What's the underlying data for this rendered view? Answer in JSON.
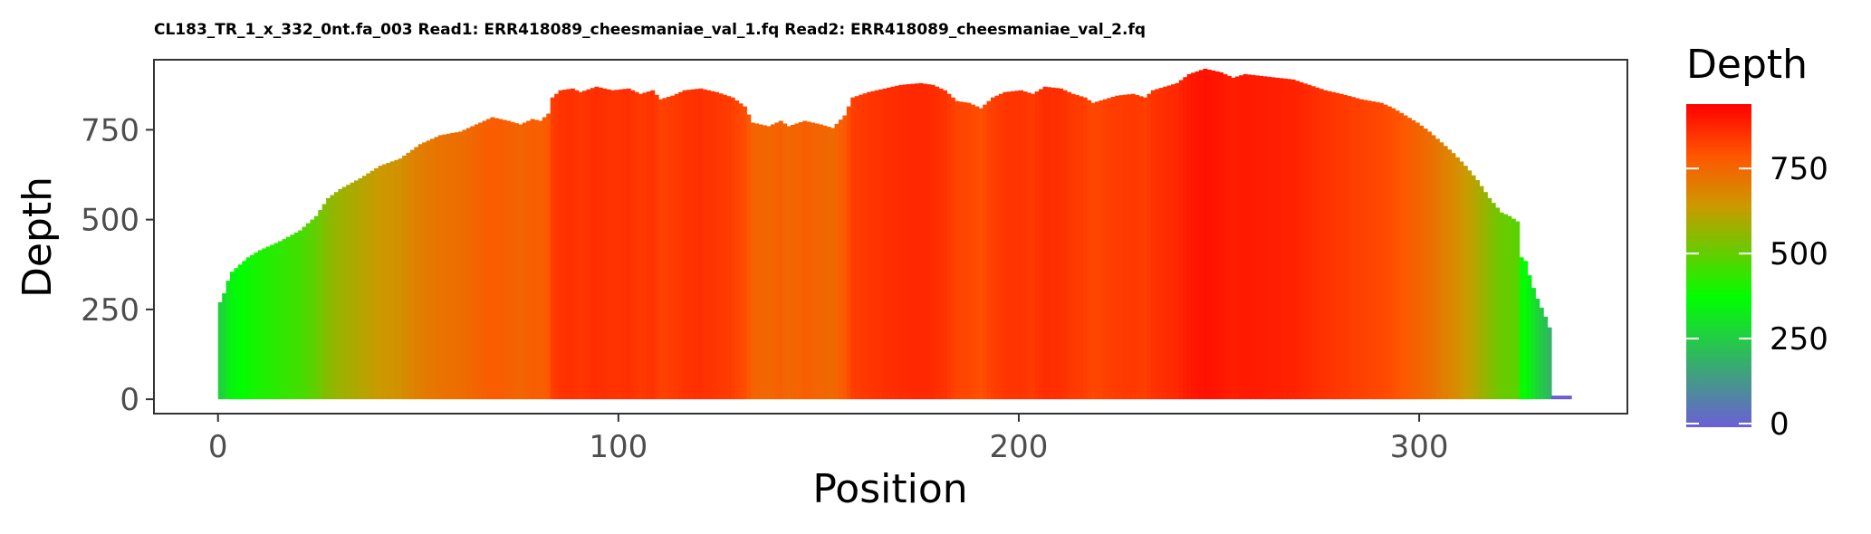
{
  "chart_data": {
    "type": "bar",
    "title": "CL183_TR_1_x_332_0nt.fa_003 Read1: ERR418089_cheesmaniae_val_1.fq Read2: ERR418089_cheesmaniae_val_2.fq",
    "xlabel": "Position",
    "ylabel": "Depth",
    "xlim": [
      -16,
      352
    ],
    "ylim": [
      -40,
      945
    ],
    "x_ticks": [
      0,
      100,
      200,
      300
    ],
    "y_ticks": [
      0,
      250,
      500,
      750
    ],
    "grid": false,
    "legend": {
      "title": "Depth",
      "position": "right",
      "ticks": [
        0,
        250,
        500,
        750
      ],
      "range": [
        0,
        950
      ],
      "gradient_colors": [
        {
          "value": 0,
          "color": "#6b5fd6"
        },
        {
          "value": 380,
          "color": "#00ff00"
        },
        {
          "value": 650,
          "color": "#cc9900"
        },
        {
          "value": 800,
          "color": "#ff5500"
        },
        {
          "value": 950,
          "color": "#ff0000"
        }
      ]
    },
    "series_note": "",
    "key_points": [
      [
        0,
        270
      ],
      [
        1,
        295
      ],
      [
        2,
        330
      ],
      [
        3,
        355
      ],
      [
        5,
        375
      ],
      [
        7,
        395
      ],
      [
        10,
        415
      ],
      [
        15,
        440
      ],
      [
        20,
        470
      ],
      [
        24,
        510
      ],
      [
        27,
        560
      ],
      [
        30,
        585
      ],
      [
        35,
        615
      ],
      [
        40,
        650
      ],
      [
        45,
        670
      ],
      [
        50,
        710
      ],
      [
        55,
        735
      ],
      [
        60,
        745
      ],
      [
        65,
        770
      ],
      [
        68,
        785
      ],
      [
        72,
        775
      ],
      [
        75,
        765
      ],
      [
        78,
        780
      ],
      [
        80,
        775
      ],
      [
        82,
        795
      ],
      [
        83,
        840
      ],
      [
        85,
        860
      ],
      [
        88,
        865
      ],
      [
        90,
        855
      ],
      [
        94,
        870
      ],
      [
        98,
        860
      ],
      [
        102,
        865
      ],
      [
        105,
        850
      ],
      [
        108,
        860
      ],
      [
        110,
        835
      ],
      [
        113,
        845
      ],
      [
        116,
        860
      ],
      [
        120,
        865
      ],
      [
        124,
        855
      ],
      [
        128,
        840
      ],
      [
        131,
        815
      ],
      [
        133,
        770
      ],
      [
        137,
        760
      ],
      [
        140,
        775
      ],
      [
        142,
        760
      ],
      [
        146,
        775
      ],
      [
        150,
        765
      ],
      [
        153,
        755
      ],
      [
        156,
        790
      ],
      [
        158,
        840
      ],
      [
        162,
        855
      ],
      [
        166,
        865
      ],
      [
        170,
        875
      ],
      [
        175,
        880
      ],
      [
        178,
        875
      ],
      [
        181,
        860
      ],
      [
        184,
        830
      ],
      [
        187,
        825
      ],
      [
        190,
        810
      ],
      [
        193,
        840
      ],
      [
        196,
        855
      ],
      [
        200,
        860
      ],
      [
        203,
        850
      ],
      [
        206,
        870
      ],
      [
        210,
        865
      ],
      [
        213,
        850
      ],
      [
        216,
        840
      ],
      [
        218,
        825
      ],
      [
        221,
        835
      ],
      [
        224,
        845
      ],
      [
        228,
        850
      ],
      [
        231,
        840
      ],
      [
        233,
        860
      ],
      [
        236,
        870
      ],
      [
        239,
        880
      ],
      [
        242,
        905
      ],
      [
        246,
        920
      ],
      [
        250,
        910
      ],
      [
        253,
        895
      ],
      [
        256,
        905
      ],
      [
        260,
        900
      ],
      [
        264,
        895
      ],
      [
        268,
        890
      ],
      [
        272,
        875
      ],
      [
        276,
        860
      ],
      [
        280,
        850
      ],
      [
        285,
        835
      ],
      [
        290,
        825
      ],
      [
        293,
        810
      ],
      [
        296,
        790
      ],
      [
        299,
        770
      ],
      [
        302,
        745
      ],
      [
        305,
        715
      ],
      [
        308,
        685
      ],
      [
        311,
        650
      ],
      [
        314,
        610
      ],
      [
        317,
        560
      ],
      [
        320,
        520
      ],
      [
        322,
        510
      ],
      [
        324,
        495
      ],
      [
        325,
        395
      ],
      [
        326,
        385
      ],
      [
        327,
        345
      ],
      [
        328,
        310
      ],
      [
        329,
        280
      ],
      [
        330,
        255
      ],
      [
        331,
        230
      ],
      [
        332,
        200
      ],
      [
        333,
        0
      ],
      [
        337,
        0
      ]
    ]
  }
}
